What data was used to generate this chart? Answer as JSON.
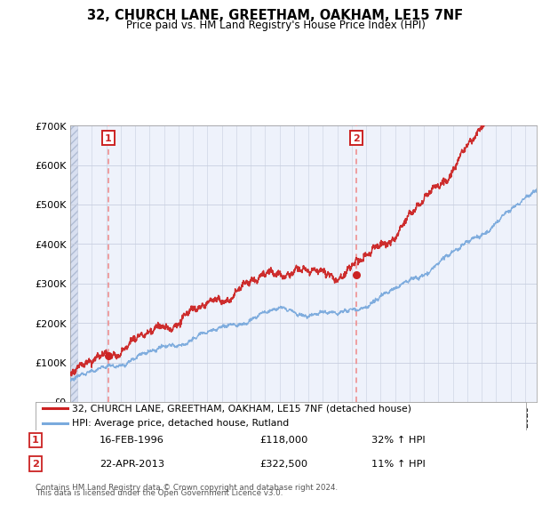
{
  "title": "32, CHURCH LANE, GREETHAM, OAKHAM, LE15 7NF",
  "subtitle": "Price paid vs. HM Land Registry's House Price Index (HPI)",
  "legend_line1": "32, CHURCH LANE, GREETHAM, OAKHAM, LE15 7NF (detached house)",
  "legend_line2": "HPI: Average price, detached house, Rutland",
  "annotation1_label": "1",
  "annotation1_date": "16-FEB-1996",
  "annotation1_price": "£118,000",
  "annotation1_hpi": "32% ↑ HPI",
  "annotation2_label": "2",
  "annotation2_date": "22-APR-2013",
  "annotation2_price": "£322,500",
  "annotation2_hpi": "11% ↑ HPI",
  "footnote1": "Contains HM Land Registry data © Crown copyright and database right 2024.",
  "footnote2": "This data is licensed under the Open Government Licence v3.0.",
  "sale1_year": 1996.12,
  "sale1_value": 118000,
  "sale2_year": 2013.31,
  "sale2_value": 322500,
  "ylim": [
    0,
    700000
  ],
  "yticks": [
    0,
    100000,
    200000,
    300000,
    400000,
    500000,
    600000,
    700000
  ],
  "ytick_labels": [
    "£0",
    "£100K",
    "£200K",
    "£300K",
    "£400K",
    "£500K",
    "£600K",
    "£700K"
  ],
  "xlim_start": 1993.5,
  "xlim_end": 2025.8,
  "background_color": "#eef2fb",
  "hatch_color": "#d8dff0",
  "grid_color": "#c8cfe0",
  "line_color_red": "#cc2222",
  "line_color_blue": "#7aaadd",
  "vline_color": "#ee8888",
  "sale_dot_color": "#cc2222",
  "box_color": "#cc2222"
}
